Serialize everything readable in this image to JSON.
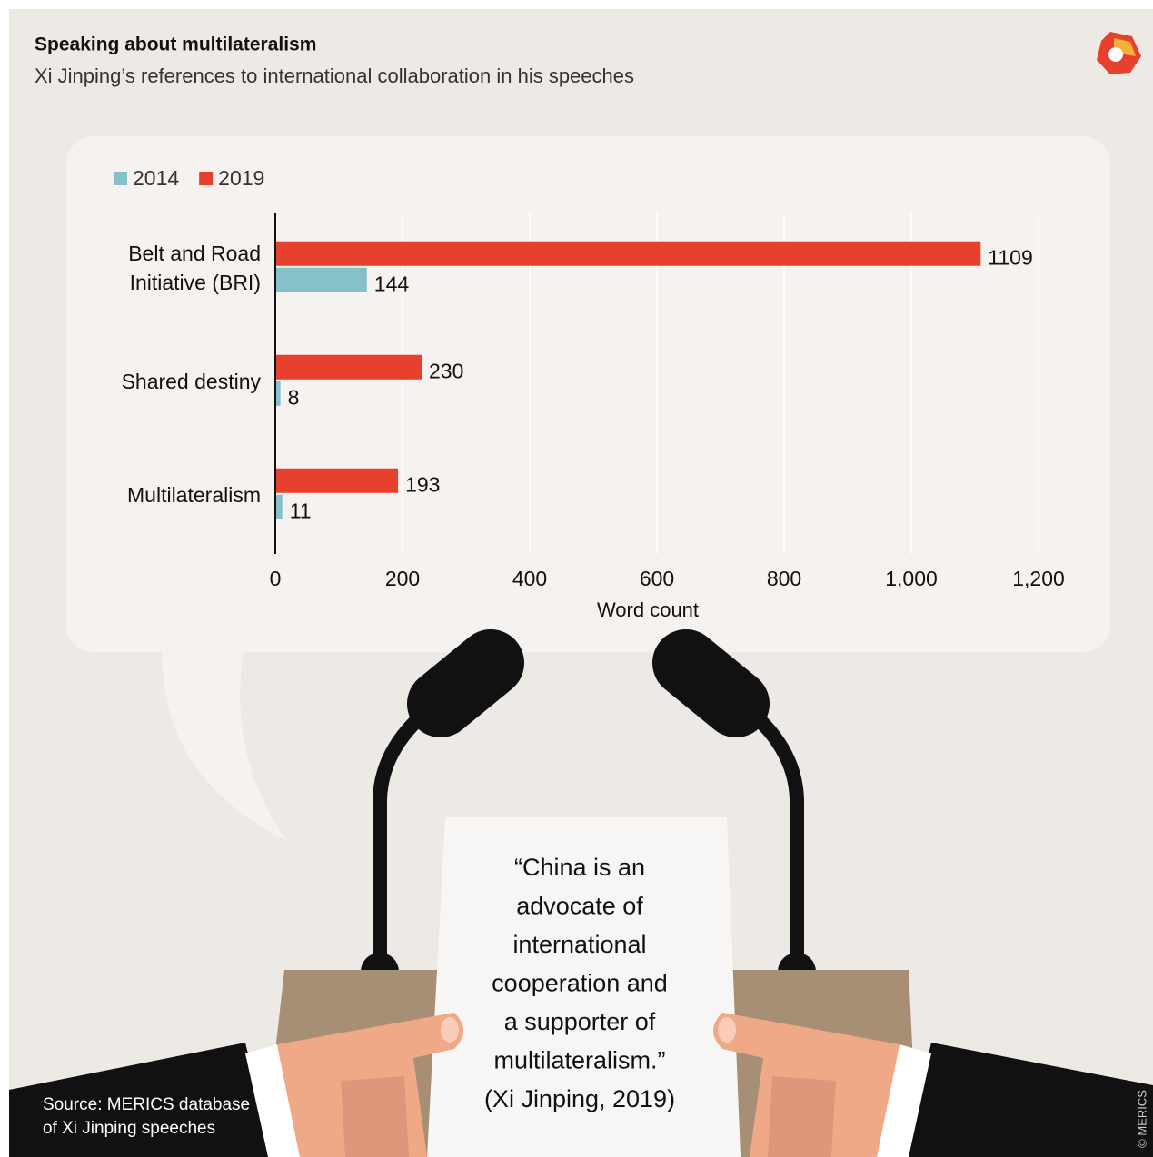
{
  "chart_data": {
    "type": "bar",
    "orientation": "horizontal",
    "title": "Speaking about multilateralism",
    "subtitle": "Xi Jinping’s references to international collaboration in his speeches",
    "categories": [
      "Belt and Road Initiative (BRI)",
      "Shared destiny",
      "Multilateralism"
    ],
    "series": [
      {
        "name": "2014",
        "color": "#84c1c8",
        "values": [
          144,
          8,
          11
        ]
      },
      {
        "name": "2019",
        "color": "#e8402e",
        "values": [
          1109,
          230,
          193
        ]
      }
    ],
    "xlim": [
      0,
      1200
    ],
    "xticks": [
      0,
      200,
      400,
      600,
      800,
      {
        "value": 1000,
        "label": "1,000"
      },
      {
        "value": 1200,
        "label": "1,200"
      }
    ],
    "xlabel": "Word count",
    "grid": true
  },
  "quote": [
    "“China is an",
    "advocate of",
    "international",
    "cooperation and",
    "a supporter of",
    "multilateralism.”",
    "(Xi Jinping, 2019)"
  ],
  "source": [
    "Source: MERICS database",
    "of Xi Jinping speeches"
  ],
  "copyright": "© MERICS"
}
